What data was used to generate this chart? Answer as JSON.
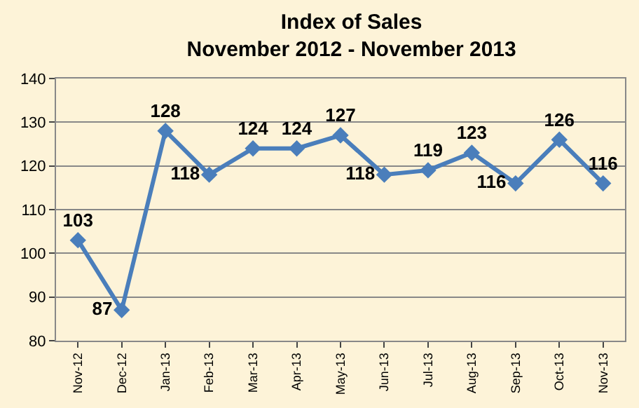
{
  "chart_data": {
    "type": "line",
    "title": "Index of Sales",
    "subtitle": "November 2012 - November 2013",
    "categories": [
      "Nov-12",
      "Dec-12",
      "Jan-13",
      "Feb-13",
      "Mar-13",
      "Apr-13",
      "May-13",
      "Jun-13",
      "Jul-13",
      "Aug-13",
      "Sep-13",
      "Oct-13",
      "Nov-13"
    ],
    "series": [
      {
        "color": "#4a7ebb",
        "values": [
          103,
          87,
          128,
          118,
          124,
          124,
          127,
          118,
          119,
          123,
          116,
          126,
          116
        ]
      }
    ],
    "ylim": [
      80,
      140
    ],
    "yticks": [
      80,
      90,
      100,
      110,
      120,
      130,
      140
    ],
    "grid": "y",
    "marker": "diamond",
    "line_style": "solid",
    "data_labels": true
  }
}
